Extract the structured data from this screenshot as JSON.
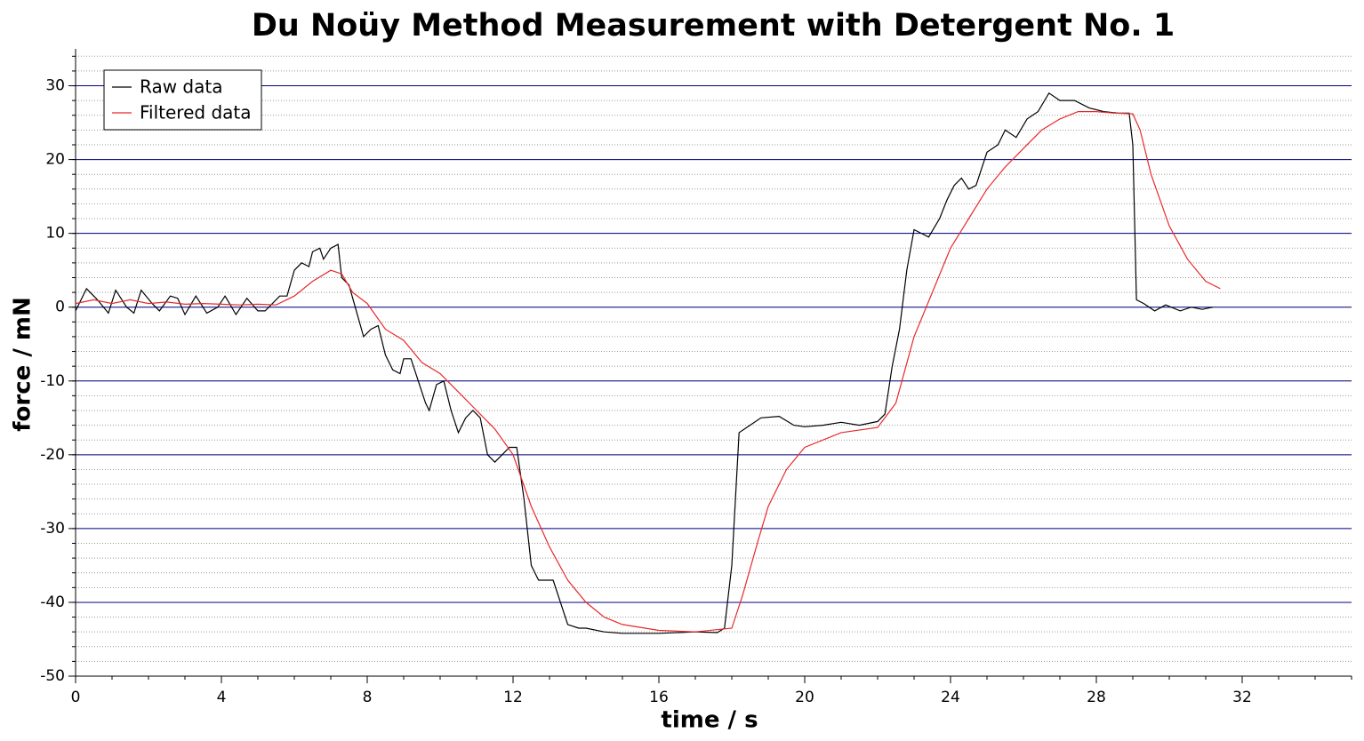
{
  "chart_data": {
    "type": "line",
    "title": "Du Noüy Method Measurement with Detergent No. 1",
    "x_label": "time / s",
    "y_label": "force / mN",
    "xlim": [
      0,
      35
    ],
    "xticks": [
      0,
      4,
      8,
      12,
      16,
      20,
      24,
      28,
      32
    ],
    "ylim": [
      -50,
      35
    ],
    "yticks": [
      -50,
      -40,
      -30,
      -20,
      -10,
      0,
      10,
      20,
      30
    ],
    "grid": true,
    "legend": "upper left",
    "series": [
      {
        "name": "Raw data",
        "color": "#000000",
        "x": [
          0,
          0.3,
          0.6,
          0.9,
          1.1,
          1.4,
          1.6,
          1.8,
          2.1,
          2.3,
          2.6,
          2.8,
          3.0,
          3.3,
          3.6,
          3.9,
          4.1,
          4.4,
          4.7,
          5.0,
          5.2,
          5.6,
          5.8,
          6.0,
          6.2,
          6.4,
          6.5,
          6.7,
          6.8,
          7.0,
          7.2,
          7.3,
          7.5,
          7.7,
          7.9,
          8.1,
          8.3,
          8.5,
          8.7,
          8.9,
          9.0,
          9.2,
          9.4,
          9.6,
          9.7,
          9.9,
          10.1,
          10.3,
          10.5,
          10.7,
          10.9,
          11.1,
          11.3,
          11.5,
          11.7,
          11.9,
          12.1,
          12.3,
          12.5,
          12.7,
          12.9,
          13.1,
          13.3,
          13.5,
          13.8,
          14.0,
          14.5,
          15,
          16,
          17,
          17.6,
          17.8,
          18.0,
          18.2,
          18.5,
          18.8,
          19.3,
          19.7,
          20.0,
          20.5,
          21,
          21.5,
          22,
          22.2,
          22.4,
          22.6,
          22.8,
          23.0,
          23.2,
          23.4,
          23.7,
          23.9,
          24.1,
          24.3,
          24.5,
          24.7,
          25.0,
          25.3,
          25.5,
          25.8,
          26.1,
          26.4,
          26.7,
          27.0,
          27.4,
          27.8,
          28.2,
          28.6,
          28.9,
          29.0,
          29.1,
          29.3,
          29.6,
          29.9,
          30.3,
          30.6,
          30.9,
          31.2
        ],
        "values": [
          -0.5,
          2.5,
          1,
          -0.8,
          2.3,
          0,
          -0.8,
          2.3,
          0.5,
          -0.5,
          1.5,
          1.2,
          -1,
          1.5,
          -0.8,
          0,
          1.5,
          -1,
          1.2,
          -0.5,
          -0.5,
          1.5,
          1.5,
          5,
          6,
          5.5,
          7.5,
          8,
          6.5,
          8,
          8.5,
          4,
          3,
          -0.5,
          -4,
          -3,
          -2.5,
          -6.5,
          -8.5,
          -9,
          -7,
          -7,
          -10,
          -13,
          -14,
          -10.5,
          -10,
          -14,
          -17,
          -15,
          -14,
          -15,
          -20,
          -21,
          -20,
          -19,
          -19,
          -26,
          -35,
          -37,
          -37,
          -37,
          -40,
          -43,
          -43.5,
          -43.5,
          -44,
          -44.2,
          -44.2,
          -44,
          -44.1,
          -43.5,
          -35,
          -17,
          -16,
          -15,
          -14.8,
          -16,
          -16.2,
          -16,
          -15.6,
          -16,
          -15.5,
          -14.5,
          -8,
          -3,
          5,
          10.5,
          10,
          9.5,
          12,
          14.5,
          16.5,
          17.5,
          16,
          16.5,
          21,
          22,
          24,
          23,
          25.5,
          26.5,
          29,
          28,
          28,
          27,
          26.5,
          26.3,
          26.3,
          22,
          1,
          0.5,
          -0.5,
          0.3,
          -0.5,
          0,
          -0.3,
          0
        ]
      },
      {
        "name": "Filtered data",
        "color": "#e8292b",
        "x": [
          0,
          0.5,
          1,
          1.5,
          2,
          2.5,
          3,
          3.5,
          4,
          4.5,
          5,
          5.5,
          6,
          6.5,
          7,
          7.3,
          7.6,
          8,
          8.5,
          9,
          9.5,
          10,
          10.5,
          11,
          11.5,
          12,
          12.5,
          13,
          13.5,
          14,
          14.5,
          15,
          16,
          17,
          18,
          18.3,
          18.7,
          19,
          19.5,
          20,
          21,
          22,
          22.5,
          23,
          23.5,
          24,
          24.5,
          25,
          25.5,
          26,
          26.5,
          27,
          27.5,
          28,
          28.5,
          29,
          29.2,
          29.5,
          30,
          30.5,
          31,
          31.4
        ],
        "values": [
          0.5,
          1,
          0.5,
          1,
          0.5,
          0.7,
          0.4,
          0.5,
          0.4,
          0.3,
          0.4,
          0.3,
          1.5,
          3.5,
          5,
          4.5,
          2,
          0.5,
          -3,
          -4.5,
          -7.5,
          -9,
          -11.5,
          -14,
          -16.5,
          -20,
          -27,
          -32.5,
          -37,
          -40,
          -42,
          -43,
          -43.8,
          -44,
          -43.5,
          -39,
          -32,
          -27,
          -22,
          -19,
          -17,
          -16.3,
          -13,
          -4,
          2,
          8,
          12,
          16,
          19,
          21.5,
          24,
          25.5,
          26.5,
          26.5,
          26.3,
          26.2,
          24,
          18,
          11,
          6.5,
          3.5,
          2.5
        ]
      }
    ]
  }
}
